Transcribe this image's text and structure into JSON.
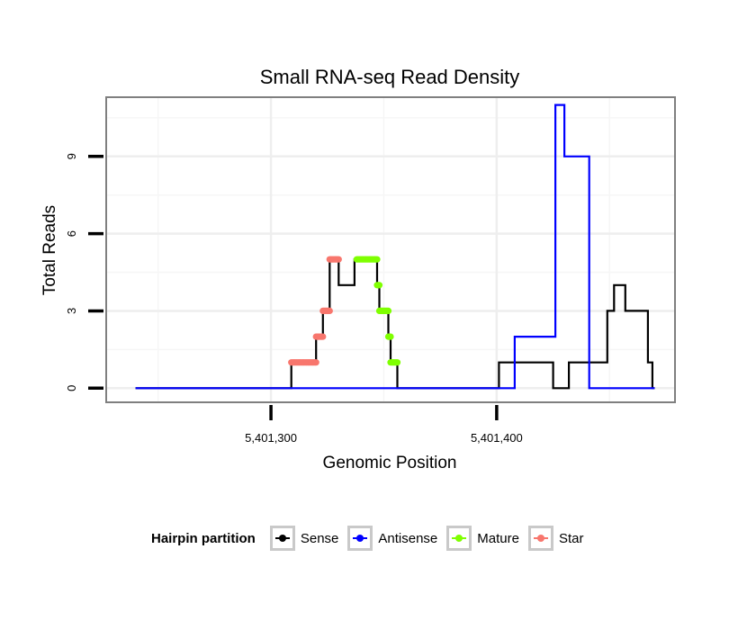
{
  "chart_data": {
    "type": "line",
    "title": "Small RNA-seq Read Density",
    "xlabel": "Genomic Position",
    "ylabel": "Total Reads",
    "xlim": [
      5401227,
      5401479
    ],
    "ylim": [
      -0.55,
      11.3
    ],
    "x_ticks": [
      5401300,
      5401400
    ],
    "x_tick_labels": [
      "5,401,300",
      "5,401,400"
    ],
    "y_ticks": [
      0,
      3,
      6,
      9
    ],
    "y_tick_labels": [
      "0",
      "3",
      "6",
      "9"
    ],
    "series": [
      {
        "name": "Sense",
        "color": "#000000",
        "style": "line",
        "steps": [
          [
            5401240,
            0
          ],
          [
            5401309,
            1
          ],
          [
            5401320,
            2
          ],
          [
            5401323,
            3
          ],
          [
            5401326,
            5
          ],
          [
            5401330,
            4
          ],
          [
            5401337,
            5
          ],
          [
            5401347,
            4
          ],
          [
            5401348,
            3
          ],
          [
            5401352,
            2
          ],
          [
            5401353,
            1
          ],
          [
            5401356,
            0
          ],
          [
            5401401,
            1
          ],
          [
            5401425,
            0
          ],
          [
            5401432,
            1
          ],
          [
            5401449,
            3
          ],
          [
            5401452,
            4
          ],
          [
            5401457,
            3
          ],
          [
            5401467,
            1
          ],
          [
            5401469,
            0
          ],
          [
            5401470,
            0
          ]
        ]
      },
      {
        "name": "Antisense",
        "color": "#0000ff",
        "style": "line",
        "steps": [
          [
            5401240,
            0
          ],
          [
            5401408,
            2
          ],
          [
            5401426,
            11
          ],
          [
            5401430,
            9
          ],
          [
            5401441,
            0
          ],
          [
            5401470,
            0
          ]
        ]
      },
      {
        "name": "Mature",
        "color": "#7fff00",
        "style": "points",
        "steps": [
          [
            5401338,
            5
          ],
          [
            5401347,
            4
          ],
          [
            5401348,
            3
          ],
          [
            5401352,
            2
          ],
          [
            5401353,
            1
          ],
          [
            5401356,
            1
          ]
        ]
      },
      {
        "name": "Star",
        "color": "#f8766d",
        "style": "points",
        "steps": [
          [
            5401309,
            1
          ],
          [
            5401320,
            2
          ],
          [
            5401323,
            3
          ],
          [
            5401326,
            5
          ],
          [
            5401330,
            5
          ]
        ]
      }
    ],
    "legend": {
      "title": "Hairpin partition",
      "position": "bottom"
    },
    "grid": true
  }
}
